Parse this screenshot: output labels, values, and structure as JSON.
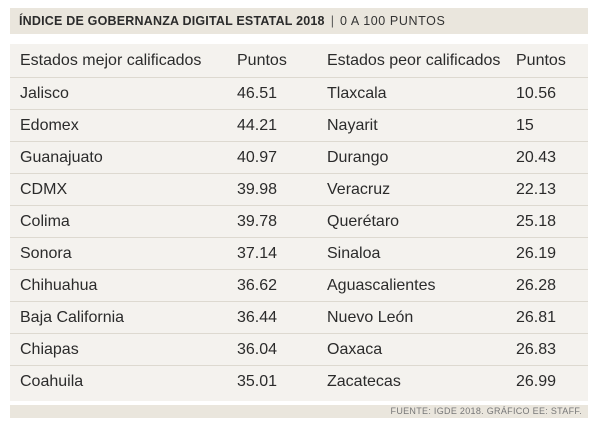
{
  "header": {
    "title": "ÍNDICE DE GOBERNANZA DIGITAL ESTATAL 2018",
    "separator": "|",
    "subtitle": "0 A 100 PUNTOS"
  },
  "chart_data": {
    "type": "table",
    "columns": [
      "Estados mejor calificados",
      "Puntos",
      "Estados peor calificados",
      "Puntos"
    ],
    "rows": [
      [
        "Jalisco",
        "46.51",
        "Tlaxcala",
        "10.56"
      ],
      [
        "Edomex",
        "44.21",
        "Nayarit",
        "15"
      ],
      [
        "Guanajuato",
        "40.97",
        "Durango",
        "20.43"
      ],
      [
        "CDMX",
        "39.98",
        "Veracruz",
        "22.13"
      ],
      [
        "Colima",
        "39.78",
        "Querétaro",
        "25.18"
      ],
      [
        "Sonora",
        "37.14",
        "Sinaloa",
        "26.19"
      ],
      [
        "Chihuahua",
        "36.62",
        "Aguascalientes",
        "26.28"
      ],
      [
        "Baja California",
        "36.44",
        "Nuevo León",
        "26.81"
      ],
      [
        "Chiapas",
        "36.04",
        "Oaxaca",
        "26.83"
      ],
      [
        "Coahuila",
        "35.01",
        "Zacatecas",
        "26.99"
      ]
    ]
  },
  "footer": {
    "source": "FUENTE: IGDE 2018. GRÁFICO EE: STAFF."
  }
}
